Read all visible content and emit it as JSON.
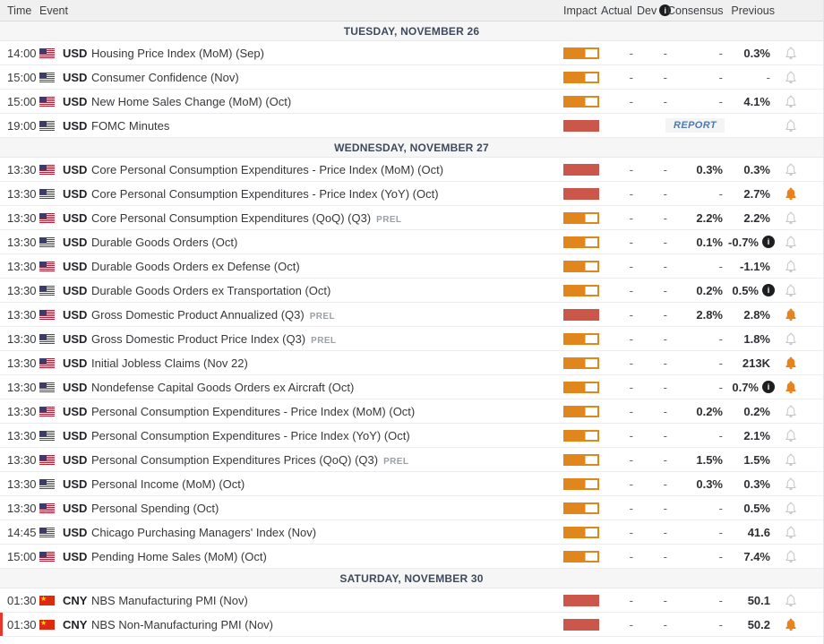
{
  "header": {
    "time": "Time",
    "event": "Event",
    "impact": "Impact",
    "actual": "Actual",
    "dev": "Dev",
    "consensus": "Consensus",
    "previous": "Previous"
  },
  "report_label": "REPORT",
  "colors": {
    "impact_medium": "#e1861d",
    "impact_high": "#cb564a",
    "bell_active": "#e8821d",
    "bell_inactive": "#c7c7cb",
    "report_text": "#4a7ab5",
    "section_text": "#3e4a5c",
    "current_time_marker": "#e8362d",
    "header_bg": "#f0f0f1",
    "section_bg": "#f6f6f7"
  },
  "sections": [
    {
      "date": "TUESDAY, NOVEMBER 26",
      "rows": [
        {
          "time": "14:00",
          "country": "US",
          "currency": "USD",
          "event": "Housing Price Index (MoM) (Sep)",
          "suffix": "",
          "impact": "medium",
          "actual": "-",
          "dev": "-",
          "consensus": "-",
          "previous": "0.3%",
          "prev_info": false,
          "bell": "off",
          "report": false,
          "marker": false
        },
        {
          "time": "15:00",
          "country": "US",
          "currency": "USD",
          "event": "Consumer Confidence (Nov)",
          "suffix": "",
          "impact": "medium",
          "actual": "-",
          "dev": "-",
          "consensus": "-",
          "previous": "-",
          "prev_info": false,
          "bell": "off",
          "report": false,
          "marker": false
        },
        {
          "time": "15:00",
          "country": "US",
          "currency": "USD",
          "event": "New Home Sales Change (MoM) (Oct)",
          "suffix": "",
          "impact": "medium",
          "actual": "-",
          "dev": "-",
          "consensus": "-",
          "previous": "4.1%",
          "prev_info": false,
          "bell": "off",
          "report": false,
          "marker": false
        },
        {
          "time": "19:00",
          "country": "US",
          "currency": "USD",
          "event": "FOMC Minutes",
          "suffix": "",
          "impact": "high",
          "actual": "",
          "dev": "",
          "consensus": "",
          "previous": "",
          "prev_info": false,
          "bell": "off",
          "report": true,
          "marker": false
        }
      ]
    },
    {
      "date": "WEDNESDAY, NOVEMBER 27",
      "rows": [
        {
          "time": "13:30",
          "country": "US",
          "currency": "USD",
          "event": "Core Personal Consumption Expenditures - Price Index (MoM) (Oct)",
          "suffix": "",
          "impact": "high",
          "actual": "-",
          "dev": "-",
          "consensus": "0.3%",
          "previous": "0.3%",
          "prev_info": false,
          "bell": "off",
          "report": false,
          "marker": false
        },
        {
          "time": "13:30",
          "country": "US",
          "currency": "USD",
          "event": "Core Personal Consumption Expenditures - Price Index (YoY) (Oct)",
          "suffix": "",
          "impact": "high",
          "actual": "-",
          "dev": "-",
          "consensus": "-",
          "previous": "2.7%",
          "prev_info": false,
          "bell": "on",
          "report": false,
          "marker": false
        },
        {
          "time": "13:30",
          "country": "US",
          "currency": "USD",
          "event": "Core Personal Consumption Expenditures (QoQ) (Q3)",
          "suffix": "PREL",
          "impact": "medium",
          "actual": "-",
          "dev": "-",
          "consensus": "2.2%",
          "previous": "2.2%",
          "prev_info": false,
          "bell": "off",
          "report": false,
          "marker": false
        },
        {
          "time": "13:30",
          "country": "US",
          "currency": "USD",
          "event": "Durable Goods Orders (Oct)",
          "suffix": "",
          "impact": "medium",
          "actual": "-",
          "dev": "-",
          "consensus": "0.1%",
          "previous": "-0.7%",
          "prev_info": true,
          "bell": "off",
          "report": false,
          "marker": false
        },
        {
          "time": "13:30",
          "country": "US",
          "currency": "USD",
          "event": "Durable Goods Orders ex Defense (Oct)",
          "suffix": "",
          "impact": "medium",
          "actual": "-",
          "dev": "-",
          "consensus": "-",
          "previous": "-1.1%",
          "prev_info": false,
          "bell": "off",
          "report": false,
          "marker": false
        },
        {
          "time": "13:30",
          "country": "US",
          "currency": "USD",
          "event": "Durable Goods Orders ex Transportation (Oct)",
          "suffix": "",
          "impact": "medium",
          "actual": "-",
          "dev": "-",
          "consensus": "0.2%",
          "previous": "0.5%",
          "prev_info": true,
          "bell": "off",
          "report": false,
          "marker": false
        },
        {
          "time": "13:30",
          "country": "US",
          "currency": "USD",
          "event": "Gross Domestic Product Annualized (Q3)",
          "suffix": "PREL",
          "impact": "high",
          "actual": "-",
          "dev": "-",
          "consensus": "2.8%",
          "previous": "2.8%",
          "prev_info": false,
          "bell": "on",
          "report": false,
          "marker": false
        },
        {
          "time": "13:30",
          "country": "US",
          "currency": "USD",
          "event": "Gross Domestic Product Price Index (Q3)",
          "suffix": "PREL",
          "impact": "medium",
          "actual": "-",
          "dev": "-",
          "consensus": "-",
          "previous": "1.8%",
          "prev_info": false,
          "bell": "off",
          "report": false,
          "marker": false
        },
        {
          "time": "13:30",
          "country": "US",
          "currency": "USD",
          "event": "Initial Jobless Claims (Nov 22)",
          "suffix": "",
          "impact": "medium",
          "actual": "-",
          "dev": "-",
          "consensus": "-",
          "previous": "213K",
          "prev_info": false,
          "bell": "on",
          "report": false,
          "marker": false
        },
        {
          "time": "13:30",
          "country": "US",
          "currency": "USD",
          "event": "Nondefense Capital Goods Orders ex Aircraft (Oct)",
          "suffix": "",
          "impact": "medium",
          "actual": "-",
          "dev": "-",
          "consensus": "-",
          "previous": "0.7%",
          "prev_info": true,
          "bell": "on",
          "report": false,
          "marker": false
        },
        {
          "time": "13:30",
          "country": "US",
          "currency": "USD",
          "event": "Personal Consumption Expenditures - Price Index (MoM) (Oct)",
          "suffix": "",
          "impact": "medium",
          "actual": "-",
          "dev": "-",
          "consensus": "0.2%",
          "previous": "0.2%",
          "prev_info": false,
          "bell": "off",
          "report": false,
          "marker": false
        },
        {
          "time": "13:30",
          "country": "US",
          "currency": "USD",
          "event": "Personal Consumption Expenditures - Price Index (YoY) (Oct)",
          "suffix": "",
          "impact": "medium",
          "actual": "-",
          "dev": "-",
          "consensus": "-",
          "previous": "2.1%",
          "prev_info": false,
          "bell": "off",
          "report": false,
          "marker": false
        },
        {
          "time": "13:30",
          "country": "US",
          "currency": "USD",
          "event": "Personal Consumption Expenditures Prices (QoQ) (Q3)",
          "suffix": "PREL",
          "impact": "medium",
          "actual": "-",
          "dev": "-",
          "consensus": "1.5%",
          "previous": "1.5%",
          "prev_info": false,
          "bell": "off",
          "report": false,
          "marker": false
        },
        {
          "time": "13:30",
          "country": "US",
          "currency": "USD",
          "event": "Personal Income (MoM) (Oct)",
          "suffix": "",
          "impact": "medium",
          "actual": "-",
          "dev": "-",
          "consensus": "0.3%",
          "previous": "0.3%",
          "prev_info": false,
          "bell": "off",
          "report": false,
          "marker": false
        },
        {
          "time": "13:30",
          "country": "US",
          "currency": "USD",
          "event": "Personal Spending (Oct)",
          "suffix": "",
          "impact": "medium",
          "actual": "-",
          "dev": "-",
          "consensus": "-",
          "previous": "0.5%",
          "prev_info": false,
          "bell": "off",
          "report": false,
          "marker": false
        },
        {
          "time": "14:45",
          "country": "US",
          "currency": "USD",
          "event": "Chicago Purchasing Managers' Index (Nov)",
          "suffix": "",
          "impact": "medium",
          "actual": "-",
          "dev": "-",
          "consensus": "-",
          "previous": "41.6",
          "prev_info": false,
          "bell": "off",
          "report": false,
          "marker": false
        },
        {
          "time": "15:00",
          "country": "US",
          "currency": "USD",
          "event": "Pending Home Sales (MoM) (Oct)",
          "suffix": "",
          "impact": "medium",
          "actual": "-",
          "dev": "-",
          "consensus": "-",
          "previous": "7.4%",
          "prev_info": false,
          "bell": "off",
          "report": false,
          "marker": false
        }
      ]
    },
    {
      "date": "SATURDAY, NOVEMBER 30",
      "rows": [
        {
          "time": "01:30",
          "country": "CN",
          "currency": "CNY",
          "event": "NBS Manufacturing PMI (Nov)",
          "suffix": "",
          "impact": "high",
          "actual": "-",
          "dev": "-",
          "consensus": "-",
          "previous": "50.1",
          "prev_info": false,
          "bell": "off",
          "report": false,
          "marker": false
        },
        {
          "time": "01:30",
          "country": "CN",
          "currency": "CNY",
          "event": "NBS Non-Manufacturing PMI (Nov)",
          "suffix": "",
          "impact": "high",
          "actual": "-",
          "dev": "-",
          "consensus": "-",
          "previous": "50.2",
          "prev_info": false,
          "bell": "on",
          "report": false,
          "marker": true
        }
      ]
    }
  ]
}
